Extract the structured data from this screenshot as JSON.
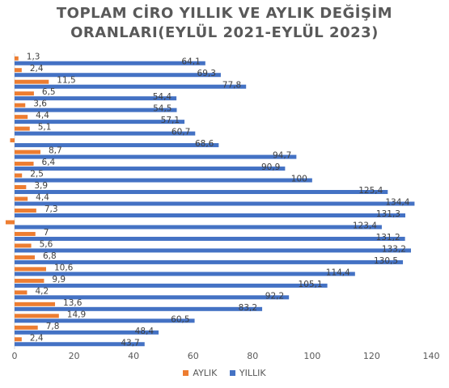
{
  "chart_data": {
    "type": "bar",
    "orientation": "horizontal",
    "title_lines": [
      "TOPLAM CİRO YILLIK VE AYLIK DEĞİŞİM",
      "ORANLARI(EYLÜL 2021-EYLÜL 2023)"
    ],
    "xlim": [
      0,
      140
    ],
    "x_ticks": [
      0,
      20,
      40,
      60,
      80,
      100,
      120,
      140
    ],
    "grid": false,
    "legend_position": "bottom",
    "categories_visible": false,
    "series": [
      {
        "name": "AYLIK",
        "color": "#ED7D31",
        "values": [
          1.3,
          2.4,
          11.5,
          6.5,
          3.6,
          4.4,
          5.1,
          -1.5,
          8.7,
          6.4,
          2.5,
          3.9,
          4.4,
          7.3,
          -3.0,
          7,
          5.6,
          6.8,
          10.6,
          9.9,
          4.2,
          13.6,
          14.9,
          7.8,
          2.4
        ],
        "labels": [
          "1,3",
          "2,4",
          "11,5",
          "6,5",
          "3,6",
          "4,4",
          "5,1",
          "",
          "8,7",
          "6,4",
          "2,5",
          "3,9",
          "4,4",
          "7,3",
          "",
          "7",
          "5,6",
          "6,8",
          "10,6",
          "9,9",
          "4,2",
          "13,6",
          "14,9",
          "7,8",
          "2,4"
        ]
      },
      {
        "name": "YILLIK",
        "color": "#4472C4",
        "values": [
          64.1,
          69.3,
          77.8,
          54.4,
          54.5,
          57.1,
          60.7,
          68.6,
          94.7,
          90.9,
          100,
          125.4,
          134.4,
          131.3,
          123.4,
          131.2,
          133.2,
          130.5,
          114.4,
          105.1,
          92.2,
          83.2,
          60.5,
          48.4,
          43.7
        ],
        "labels": [
          "64,1",
          "69,3",
          "77,8",
          "54,4",
          "54,5",
          "57,1",
          "60,7",
          "68,6",
          "94,7",
          "90,9",
          "100",
          "125,4",
          "134,4",
          "131,3",
          "123,4",
          "131,2",
          "133,2",
          "130,5",
          "114,4",
          "105,1",
          "92,2",
          "83,2",
          "60,5",
          "48,4",
          "43,7"
        ]
      }
    ]
  },
  "legend": {
    "aylik_label": "AYLIK",
    "yillik_label": "YILLIK"
  }
}
